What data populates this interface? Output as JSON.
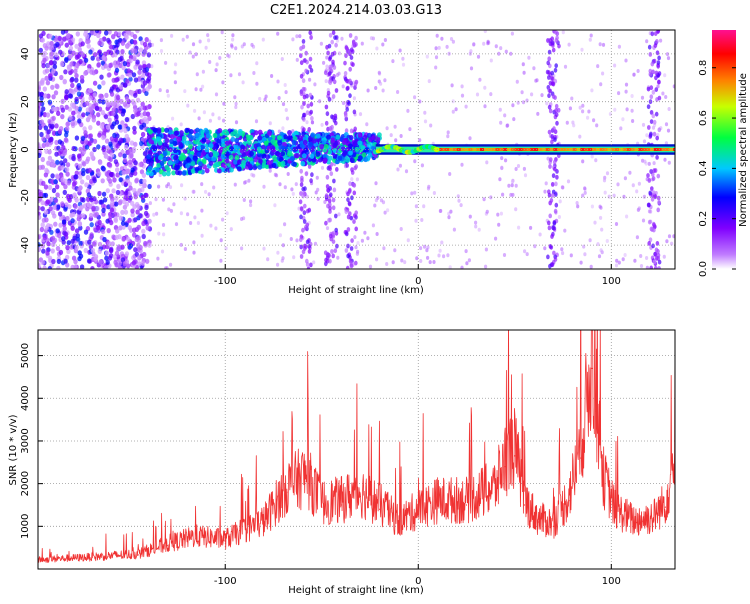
{
  "title": "C2E1.2024.214.03.03.G13",
  "chart_data": [
    {
      "type": "heatmap",
      "xlabel": "Height of straight line (km)",
      "ylabel": "Frequency (Hz)",
      "xlim": [
        -197,
        133
      ],
      "ylim": [
        -50,
        50
      ],
      "xticks": [
        -100,
        0,
        100
      ],
      "yticks": [
        -40,
        -20,
        0,
        20,
        40
      ],
      "colorbar": {
        "label": "Normalized spectral amplitude",
        "range": [
          0,
          0.95
        ],
        "ticks": [
          "0.0",
          "0.2",
          "0.4",
          "0.6",
          "0.8"
        ],
        "colormap": [
          "#ffffff",
          "#a000ff",
          "#0000ff",
          "#00ffff",
          "#00ff00",
          "#ffff00",
          "#ff0000",
          "#ff00ff"
        ]
      },
      "features": [
        {
          "name": "dominant_tone",
          "x_from": -138,
          "x_to": 133,
          "freq_hz": 0,
          "amplitude": 0.85
        },
        {
          "name": "noisy_band",
          "x_from": -197,
          "x_to": -140,
          "freq_hz": [
            -50,
            50
          ],
          "amplitude": 0.2
        },
        {
          "name": "vertical_streaks_x",
          "values": [
            -58,
            -45,
            -35,
            70,
            122
          ]
        }
      ]
    },
    {
      "type": "line",
      "xlabel": "Height of straight line (km)",
      "ylabel": "SNR (10 * v/v)",
      "xlim": [
        -197,
        133
      ],
      "ylim": [
        0,
        5600
      ],
      "xticks": [
        -100,
        0,
        100
      ],
      "yticks": [
        1000,
        2000,
        3000,
        4000,
        5000
      ],
      "color": "#f03232",
      "x": [
        -197,
        -170,
        -145,
        -130,
        -115,
        -100,
        -80,
        -68,
        -58,
        -50,
        -40,
        -30,
        -20,
        -10,
        0,
        10,
        25,
        40,
        45,
        50,
        55,
        62,
        70,
        78,
        84,
        88,
        90,
        92,
        96,
        102,
        112,
        122,
        128,
        133
      ],
      "values": [
        200,
        260,
        330,
        550,
        720,
        650,
        1050,
        1800,
        2050,
        1450,
        1500,
        1700,
        1400,
        1050,
        1300,
        1500,
        1500,
        1800,
        2400,
        2650,
        1500,
        1100,
        1000,
        1600,
        2600,
        3900,
        4700,
        3700,
        2000,
        1300,
        1050,
        1150,
        1450,
        2400
      ]
    }
  ]
}
